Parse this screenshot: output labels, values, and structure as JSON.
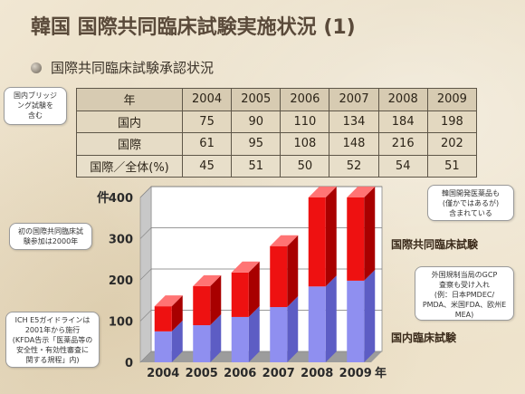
{
  "header": {
    "title": "韓国 国際共同臨床試験実施状況 (1)",
    "subtitle": "国際共同臨床試験承認状況"
  },
  "table": {
    "year_header": "年",
    "years": [
      "2004",
      "2005",
      "2006",
      "2007",
      "2008",
      "2009"
    ],
    "rows": [
      {
        "label": "国内",
        "values": [
          "75",
          "90",
          "110",
          "134",
          "184",
          "198"
        ]
      },
      {
        "label": "国際",
        "values": [
          "61",
          "95",
          "108",
          "148",
          "216",
          "202"
        ]
      },
      {
        "label": "国際／全体(%)",
        "values": [
          "45",
          "51",
          "50",
          "52",
          "54",
          "51"
        ]
      }
    ]
  },
  "callouts": {
    "bridging": "国内ブリッジ\nング試験を\n含む",
    "first": "初の国際共同臨床試\n験参加は2000年",
    "ich": "ICH E5ガイドラインは\n2001年から施行\n(KFDA告示「医薬品等の\n安全性・有効性審査に\n関する規程」内)",
    "korea_drugs": "韓国開発医薬品も\n(僅かではあるが)\n含まれている",
    "gcp": "外国規制当局のGCP\n査察も受け入れ\n(例：日本PMDEC/\nPMDA、米国FDA、欧州E\nMEA)"
  },
  "colors": {
    "domestic": "#8f8ff0",
    "international": "#ee1111"
  },
  "chart_data": {
    "type": "bar",
    "stacked": true,
    "categories": [
      "2004",
      "2005",
      "2006",
      "2007",
      "2008",
      "2009"
    ],
    "series": [
      {
        "name": "国内臨床試験",
        "values": [
          75,
          90,
          110,
          134,
          184,
          198
        ]
      },
      {
        "name": "国際共同臨床試験",
        "values": [
          61,
          95,
          108,
          148,
          216,
          202
        ]
      }
    ],
    "ylim": [
      0,
      400
    ],
    "yticks": [
      "0",
      "100",
      "200",
      "300",
      "400"
    ],
    "ylabel": "件",
    "xlabel": "年",
    "grid": true
  }
}
